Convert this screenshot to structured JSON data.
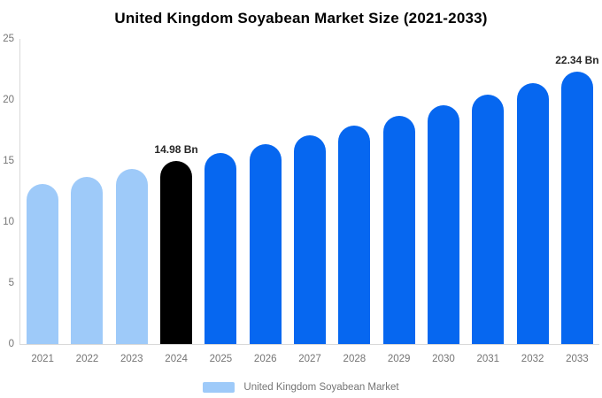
{
  "title": "United Kingdom Soyabean Market Size (2021-2033)",
  "colors": {
    "past": "#9ECAF9",
    "base": "#000000",
    "forecast": "#0667F0",
    "axis_line": "#d9d9d9",
    "tick_text": "#757575",
    "value_label_text": "#262626",
    "title_text": "#000000"
  },
  "legend": {
    "label": "United Kingdom Soyabean Market",
    "swatch_color": "#9ECAF9"
  },
  "chart_data": {
    "type": "bar",
    "title": "United Kingdom Soyabean Market Size (2021-2033)",
    "unit": "Bn",
    "categories": [
      "2021",
      "2022",
      "2023",
      "2024",
      "2025",
      "2026",
      "2027",
      "2028",
      "2029",
      "2030",
      "2031",
      "2032",
      "2033"
    ],
    "values": [
      13.11,
      13.7,
      14.33,
      14.98,
      15.66,
      16.37,
      17.12,
      17.9,
      18.71,
      19.56,
      20.45,
      21.38,
      22.34
    ],
    "bar_roles": [
      "past",
      "past",
      "past",
      "base",
      "forecast",
      "forecast",
      "forecast",
      "forecast",
      "forecast",
      "forecast",
      "forecast",
      "forecast",
      "forecast"
    ],
    "annotations": {
      "2024": "14.98 Bn",
      "2033": "22.34 Bn"
    },
    "ylim": [
      0,
      25
    ],
    "yticks": [
      0,
      5,
      10,
      15,
      20,
      25
    ],
    "xlabel": "",
    "ylabel": "",
    "grid": false,
    "legend_position": "bottom"
  }
}
